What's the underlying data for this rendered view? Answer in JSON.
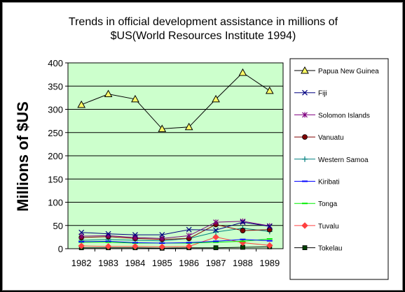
{
  "chart_data": {
    "type": "line",
    "title_line1": "Trends in official development assistance in millions of",
    "title_line2": "$US(World Resources Institute 1994)",
    "xlabel": "",
    "ylabel": "Millions of $US",
    "x": [
      "1982",
      "1983",
      "1984",
      "1985",
      "1986",
      "1987",
      "1988",
      "1989"
    ],
    "ylim": [
      0,
      400
    ],
    "yticks": [
      0,
      50,
      100,
      150,
      200,
      250,
      300,
      350,
      400
    ],
    "grid": true,
    "legend_position": "right",
    "plot_background": "#ccffcc",
    "series": [
      {
        "name": "Papua New Guinea",
        "values": [
          310,
          333,
          322,
          258,
          262,
          322,
          379,
          340
        ],
        "color": "#000000",
        "marker": "triangle",
        "marker_fill": "#ffff66"
      },
      {
        "name": "Fiji",
        "values": [
          35,
          32,
          30,
          30,
          41,
          40,
          57,
          48
        ],
        "color": "#000080",
        "marker": "x",
        "marker_fill": "none"
      },
      {
        "name": "Solomon Islands",
        "values": [
          27,
          28,
          24,
          22,
          28,
          57,
          59,
          49
        ],
        "color": "#800080",
        "marker": "star",
        "marker_fill": "none"
      },
      {
        "name": "Vanuatu",
        "values": [
          24,
          26,
          22,
          20,
          22,
          52,
          39,
          41
        ],
        "color": "#800000",
        "marker": "circle",
        "marker_fill": "#800000"
      },
      {
        "name": "Western Samoa",
        "values": [
          18,
          20,
          18,
          17,
          22,
          36,
          44,
          37
        ],
        "color": "#008080",
        "marker": "plus",
        "marker_fill": "none"
      },
      {
        "name": "Kiribati",
        "values": [
          15,
          16,
          13,
          12,
          13,
          16,
          20,
          17
        ],
        "color": "#0000ff",
        "marker": "dash",
        "marker_fill": "none"
      },
      {
        "name": "Tonga",
        "values": [
          14,
          14,
          12,
          12,
          12,
          14,
          16,
          21
        ],
        "color": "#00ee00",
        "marker": "dash",
        "marker_fill": "none"
      },
      {
        "name": "Tuvalu",
        "values": [
          6,
          5,
          5,
          4,
          5,
          25,
          13,
          7
        ],
        "color": "#ff4040",
        "marker": "diamond",
        "marker_fill": "#ff4040"
      },
      {
        "name": "Tokelau",
        "values": [
          2,
          2,
          2,
          1,
          2,
          2,
          3,
          4
        ],
        "color": "#000000",
        "marker": "square",
        "marker_fill": "#004000"
      }
    ]
  }
}
